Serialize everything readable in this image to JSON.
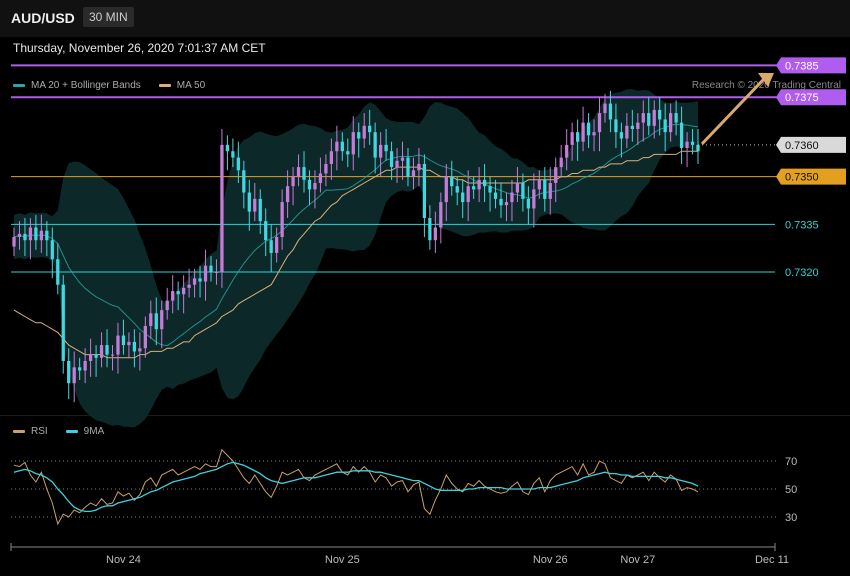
{
  "header": {
    "symbol": "AUD/USD",
    "timeframe": "30 MIN"
  },
  "timestamp": "Thursday, November 26, 2020 7:01:37 AM CET",
  "legend_main": [
    {
      "label": "MA 20 + Bollinger Bands",
      "color": "#2aa7a7"
    },
    {
      "label": "MA 50",
      "color": "#d9b07a"
    }
  ],
  "legend_rsi": [
    {
      "label": "RSI",
      "color": "#c9a06a"
    },
    {
      "label": "9MA",
      "color": "#3fd0e0"
    }
  ],
  "credit": "Research © 2020 Trading Central",
  "colors": {
    "resistance": "#b05cf0",
    "pivot": "#e3a020",
    "support": "#2ad6d6",
    "candle_up": "#c47cd8",
    "candle_down": "#3fd8e0",
    "band_fill": "#0e2a2a",
    "arrow": "#d9a86c"
  },
  "chart_data": [
    {
      "type": "candlestick",
      "title": "AUD/USD 30 MIN",
      "price_range": [
        0.7275,
        0.7393
      ],
      "x_labels": [
        "Nov 24",
        "Nov 25",
        "Nov 26",
        "Nov 27",
        "Dec 11"
      ],
      "levels": [
        {
          "label": "0.7385",
          "value": 0.7385,
          "kind": "resistance"
        },
        {
          "label": "0.7375",
          "value": 0.7375,
          "kind": "resistance"
        },
        {
          "label": "0.7360",
          "value": 0.736,
          "kind": "current"
        },
        {
          "label": "0.7350",
          "value": 0.735,
          "kind": "pivot"
        },
        {
          "label": "0.7335",
          "value": 0.7335,
          "kind": "support"
        },
        {
          "label": "0.7320",
          "value": 0.732,
          "kind": "support"
        }
      ],
      "closes": [
        0.7331,
        0.7332,
        0.733,
        0.7334,
        0.733,
        0.7333,
        0.733,
        0.7324,
        0.7316,
        0.7292,
        0.7285,
        0.729,
        0.7289,
        0.7292,
        0.7294,
        0.7293,
        0.7297,
        0.7294,
        0.7294,
        0.73,
        0.7297,
        0.7298,
        0.7295,
        0.7296,
        0.7303,
        0.7307,
        0.7302,
        0.7308,
        0.7311,
        0.7314,
        0.7313,
        0.7315,
        0.7316,
        0.7318,
        0.7317,
        0.7322,
        0.732,
        0.732,
        0.736,
        0.7358,
        0.7356,
        0.7352,
        0.7345,
        0.7339,
        0.7343,
        0.7336,
        0.733,
        0.7326,
        0.7331,
        0.7342,
        0.7347,
        0.735,
        0.7353,
        0.7349,
        0.7346,
        0.7348,
        0.7351,
        0.7354,
        0.7358,
        0.7361,
        0.7358,
        0.7357,
        0.7364,
        0.7362,
        0.7366,
        0.7364,
        0.7356,
        0.736,
        0.7358,
        0.7353,
        0.7355,
        0.7356,
        0.735,
        0.7352,
        0.7354,
        0.7337,
        0.733,
        0.7334,
        0.7342,
        0.735,
        0.7347,
        0.7345,
        0.7342,
        0.7347,
        0.7346,
        0.7349,
        0.7347,
        0.7345,
        0.7343,
        0.7341,
        0.7342,
        0.7345,
        0.7348,
        0.7343,
        0.734,
        0.7346,
        0.7349,
        0.7343,
        0.7348,
        0.7353,
        0.7356,
        0.736,
        0.7364,
        0.7361,
        0.7367,
        0.7363,
        0.7364,
        0.737,
        0.7373,
        0.7368,
        0.7364,
        0.7362,
        0.7366,
        0.7365,
        0.7367,
        0.737,
        0.7366,
        0.7371,
        0.7368,
        0.7364,
        0.737,
        0.7367,
        0.7359,
        0.7361,
        0.736,
        0.7358
      ],
      "ma50": [
        0.7308,
        0.7307,
        0.7306,
        0.7305,
        0.7304,
        0.7304,
        0.7303,
        0.7302,
        0.7301,
        0.7299,
        0.7297,
        0.7296,
        0.7295,
        0.7294,
        0.7294,
        0.7294,
        0.7294,
        0.7293,
        0.7293,
        0.7293,
        0.7293,
        0.7293,
        0.7293,
        0.7294,
        0.7294,
        0.7295,
        0.7295,
        0.7295,
        0.7296,
        0.7296,
        0.7297,
        0.7298,
        0.7298,
        0.73,
        0.7301,
        0.7302,
        0.7303,
        0.7304,
        0.7306,
        0.7307,
        0.7308,
        0.731,
        0.7311,
        0.7312,
        0.7313,
        0.7314,
        0.7315,
        0.7316,
        0.7319,
        0.7322,
        0.7325,
        0.7327,
        0.733,
        0.7332,
        0.7334,
        0.7336,
        0.7337,
        0.7339,
        0.7341,
        0.7342,
        0.7344,
        0.7345,
        0.7346,
        0.7347,
        0.7348,
        0.7349,
        0.735,
        0.7351,
        0.7352,
        0.7352,
        0.7353,
        0.7353,
        0.7353,
        0.7353,
        0.7353,
        0.7352,
        0.7352,
        0.7351,
        0.735,
        0.735,
        0.735,
        0.7349,
        0.7349,
        0.7348,
        0.7348,
        0.7348,
        0.7348,
        0.7348,
        0.7348,
        0.7348,
        0.7348,
        0.7348,
        0.7348,
        0.7348,
        0.7349,
        0.7349,
        0.7349,
        0.7349,
        0.7349,
        0.7349,
        0.735,
        0.735,
        0.7351,
        0.7351,
        0.7352,
        0.7352,
        0.7352,
        0.7353,
        0.7353,
        0.7354,
        0.7354,
        0.7354,
        0.7355,
        0.7355,
        0.7355,
        0.7356,
        0.7356,
        0.7357,
        0.7357,
        0.7357,
        0.7357,
        0.7357,
        0.7358,
        0.7358,
        0.7358,
        0.7358
      ],
      "rsi": {
        "levels": [
          70,
          50,
          30
        ],
        "rsi_values": [
          67,
          66,
          69,
          60,
          55,
          62,
          50,
          40,
          25,
          32,
          30,
          35,
          33,
          37,
          40,
          38,
          43,
          39,
          40,
          48,
          45,
          47,
          42,
          46,
          55,
          58,
          52,
          60,
          62,
          64,
          60,
          62,
          64,
          66,
          64,
          68,
          66,
          66,
          78,
          74,
          70,
          64,
          58,
          54,
          60,
          54,
          48,
          44,
          52,
          62,
          60,
          62,
          64,
          58,
          56,
          60,
          62,
          64,
          66,
          68,
          62,
          60,
          66,
          62,
          66,
          62,
          55,
          60,
          58,
          52,
          55,
          56,
          48,
          53,
          55,
          36,
          32,
          42,
          50,
          60,
          54,
          50,
          48,
          54,
          52,
          56,
          52,
          50,
          48,
          47,
          48,
          52,
          55,
          48,
          46,
          54,
          58,
          48,
          56,
          60,
          62,
          64,
          66,
          60,
          68,
          60,
          62,
          70,
          68,
          58,
          56,
          54,
          60,
          58,
          60,
          62,
          56,
          62,
          58,
          55,
          60,
          57,
          49,
          51,
          50,
          48
        ],
        "ma_values": [
          62,
          63,
          64,
          63,
          61,
          60,
          58,
          55,
          50,
          46,
          41,
          37,
          35,
          34,
          34,
          35,
          37,
          38,
          38,
          40,
          41,
          42,
          43,
          44,
          46,
          48,
          49,
          51,
          53,
          55,
          56,
          57,
          58,
          59,
          61,
          62,
          63,
          64,
          66,
          68,
          69,
          68,
          67,
          65,
          63,
          61,
          58,
          56,
          55,
          54,
          55,
          56,
          57,
          58,
          58,
          58,
          59,
          60,
          61,
          62,
          62,
          62,
          63,
          63,
          63,
          63,
          62,
          62,
          61,
          60,
          59,
          58,
          57,
          56,
          56,
          54,
          52,
          50,
          49,
          49,
          49,
          49,
          49,
          50,
          50,
          51,
          51,
          51,
          51,
          51,
          50,
          50,
          50,
          50,
          50,
          50,
          51,
          51,
          51,
          52,
          53,
          54,
          55,
          56,
          58,
          59,
          60,
          61,
          62,
          61,
          61,
          60,
          60,
          59,
          59,
          59,
          59,
          59,
          59,
          58,
          58,
          57,
          56,
          55,
          54,
          52
        ]
      }
    }
  ]
}
